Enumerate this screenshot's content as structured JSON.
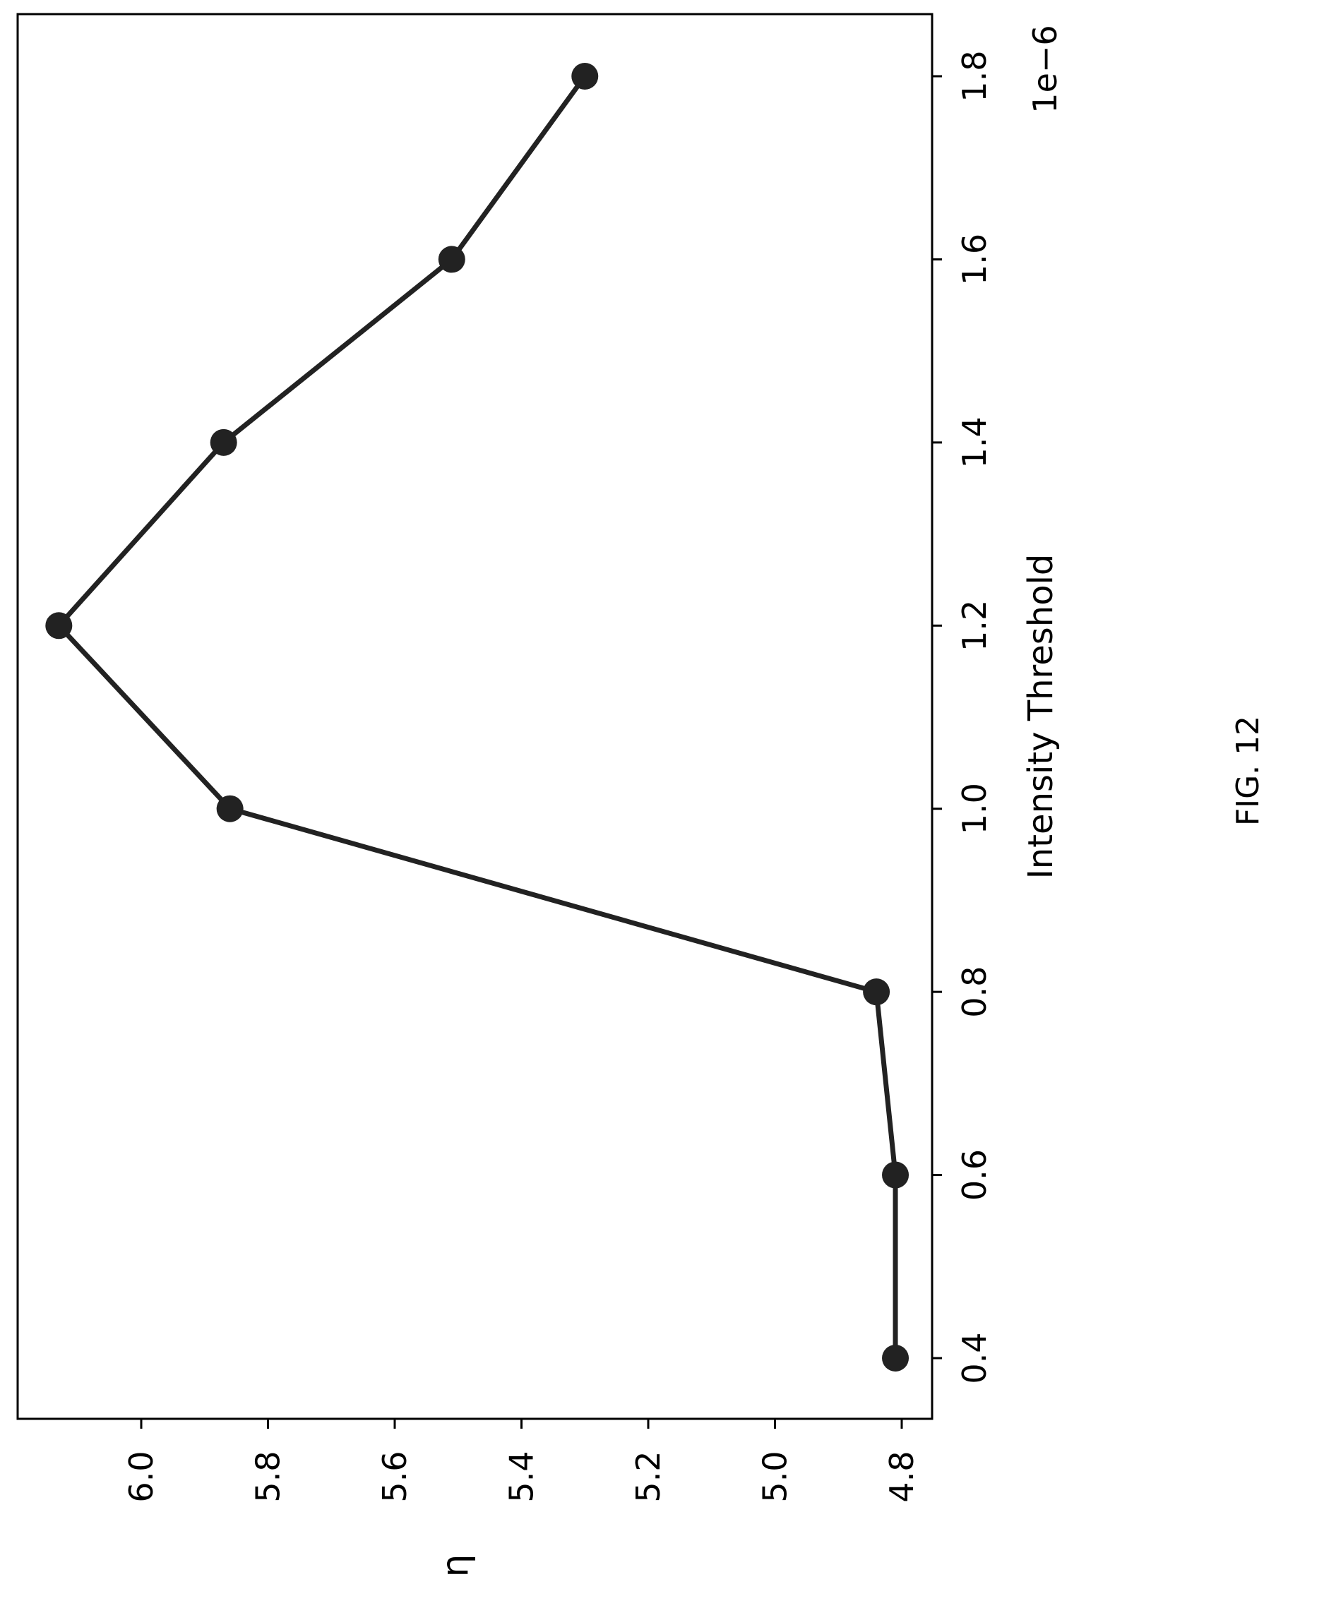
{
  "figure_caption": "FIG. 12",
  "chart_data": {
    "type": "line",
    "orientation": "rotated 90° counter-clockwise",
    "xlabel": "Intensity Threshold",
    "ylabel": "η",
    "x_offset_label": "1e−6",
    "x_ticks": [
      "0.4",
      "0.6",
      "0.8",
      "1.0",
      "1.2",
      "1.4",
      "1.6",
      "1.8"
    ],
    "y_ticks": [
      "4.8",
      "5.0",
      "5.2",
      "5.4",
      "5.6",
      "5.8",
      "6.0"
    ],
    "xlim": [
      0.33,
      1.87
    ],
    "ylim": [
      4.77,
      6.16
    ],
    "grid": false,
    "series": [
      {
        "x": [
          0.4,
          0.6,
          0.8,
          1.0,
          1.2,
          1.4,
          1.6,
          1.8
        ],
        "y": [
          4.81,
          4.81,
          4.84,
          5.86,
          6.13,
          5.87,
          5.51,
          5.3
        ],
        "color": "#222222",
        "marker": "circle"
      }
    ]
  }
}
